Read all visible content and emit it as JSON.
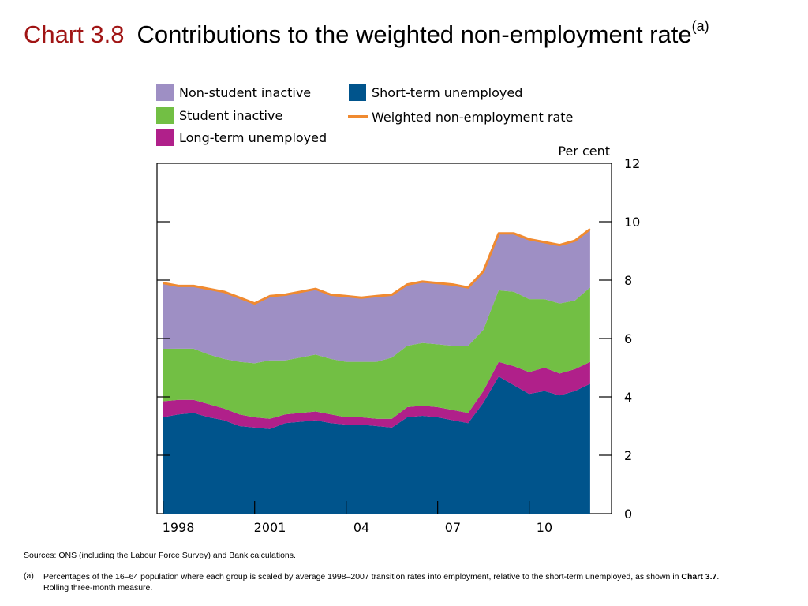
{
  "title": {
    "chart_number": "Chart 3.8",
    "text": "Contributions to the weighted non-employment rate",
    "superscript": "(a)"
  },
  "legend": [
    {
      "label": "Non-student inactive",
      "color": "#9e8fc4",
      "kind": "area"
    },
    {
      "label": "Student inactive",
      "color": "#72bf44",
      "kind": "area"
    },
    {
      "label": "Long-term unemployed",
      "color": "#b0208a",
      "kind": "area"
    },
    {
      "label": "Short-term unemployed",
      "color": "#00548c",
      "kind": "area"
    },
    {
      "label": "Weighted non-employment rate",
      "color": "#f08a30",
      "kind": "line"
    }
  ],
  "sources": "Sources:  ONS (including the Labour Force Survey) and Bank calculations.",
  "note": {
    "tag": "(a)",
    "text_before_bold": "Percentages of the 16–64 population where each group is scaled by average 1998–2007 transition rates into employment, relative to the short-term unemployed, as shown in ",
    "bold": "Chart 3.7",
    "text_after_bold": ".",
    "line2": "Rolling three-month measure."
  },
  "chart_data": {
    "type": "area",
    "stacked": true,
    "ylabel": "Per cent",
    "ylim": [
      0,
      12
    ],
    "y_ticks": [
      "0",
      "2",
      "4",
      "6",
      "8",
      "10",
      "12"
    ],
    "y_tick_values": [
      0,
      2,
      4,
      6,
      8,
      10,
      12
    ],
    "y_axis_side": "right",
    "xlim": [
      1997.8,
      2012.7
    ],
    "x_ticks": [
      {
        "label": "1998",
        "value": 1998.5
      },
      {
        "label": "2001",
        "value": 2001.5
      },
      {
        "label": "04",
        "value": 2004.5
      },
      {
        "label": "07",
        "value": 2007.5
      },
      {
        "label": "10",
        "value": 2010.5
      }
    ],
    "x_gridline_values": [
      1998,
      2001,
      2004,
      2007,
      2010
    ],
    "grid": false,
    "x": [
      1998.0,
      1998.5,
      1999.0,
      1999.5,
      2000.0,
      2000.5,
      2001.0,
      2001.5,
      2002.0,
      2002.5,
      2003.0,
      2003.5,
      2004.0,
      2004.5,
      2005.0,
      2005.5,
      2006.0,
      2006.5,
      2007.0,
      2007.5,
      2008.0,
      2008.5,
      2009.0,
      2009.5,
      2010.0,
      2010.5,
      2011.0,
      2011.5,
      2012.0
    ],
    "series": [
      {
        "name": "Short-term unemployed",
        "values": [
          3.3,
          3.4,
          3.45,
          3.3,
          3.2,
          3.0,
          2.95,
          2.9,
          3.1,
          3.15,
          3.2,
          3.1,
          3.05,
          3.05,
          3.0,
          2.95,
          3.3,
          3.35,
          3.3,
          3.2,
          3.1,
          3.8,
          4.7,
          4.4,
          4.1,
          4.2,
          4.05,
          4.2,
          4.45
        ]
      },
      {
        "name": "Long-term unemployed",
        "values": [
          0.55,
          0.5,
          0.45,
          0.45,
          0.4,
          0.4,
          0.35,
          0.35,
          0.3,
          0.3,
          0.3,
          0.3,
          0.25,
          0.25,
          0.25,
          0.3,
          0.35,
          0.35,
          0.35,
          0.35,
          0.35,
          0.4,
          0.5,
          0.65,
          0.75,
          0.8,
          0.75,
          0.75,
          0.75
        ]
      },
      {
        "name": "Student inactive",
        "values": [
          1.8,
          1.75,
          1.75,
          1.7,
          1.7,
          1.8,
          1.85,
          2.0,
          1.85,
          1.9,
          1.95,
          1.9,
          1.9,
          1.9,
          1.95,
          2.1,
          2.1,
          2.15,
          2.15,
          2.2,
          2.3,
          2.1,
          2.45,
          2.55,
          2.5,
          2.35,
          2.4,
          2.35,
          2.55
        ]
      },
      {
        "name": "Non-student inactive",
        "values": [
          2.25,
          2.15,
          2.15,
          2.25,
          2.3,
          2.2,
          2.05,
          2.2,
          2.25,
          2.25,
          2.25,
          2.2,
          2.25,
          2.2,
          2.25,
          2.15,
          2.1,
          2.1,
          2.1,
          2.1,
          2.0,
          2.0,
          1.95,
          2.0,
          2.05,
          1.95,
          2.0,
          2.05,
          2.0
        ]
      }
    ],
    "line_series": {
      "name": "Weighted non-employment rate",
      "values": [
        7.9,
        7.8,
        7.8,
        7.7,
        7.6,
        7.4,
        7.2,
        7.45,
        7.5,
        7.6,
        7.7,
        7.5,
        7.45,
        7.4,
        7.45,
        7.5,
        7.85,
        7.95,
        7.9,
        7.85,
        7.75,
        8.3,
        9.6,
        9.6,
        9.4,
        9.3,
        9.2,
        9.35,
        9.75
      ]
    }
  }
}
